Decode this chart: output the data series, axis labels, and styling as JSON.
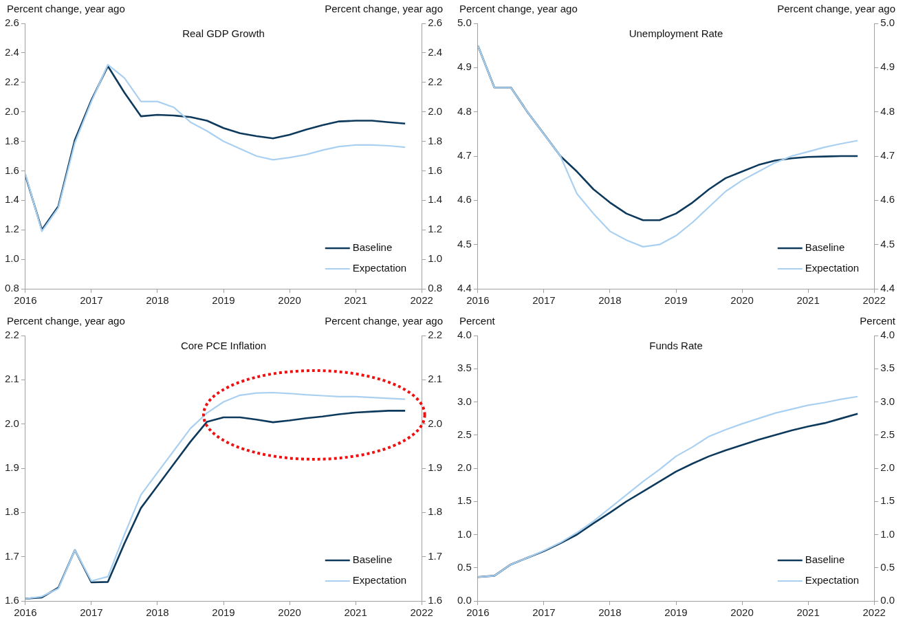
{
  "chart_data": [
    {
      "type": "line",
      "title": "Real GDP Growth",
      "ylabel": "Percent change, year ago",
      "y2label": "Percent change, year ago",
      "x": [
        2016,
        2016.25,
        2016.5,
        2016.75,
        2017,
        2017.25,
        2017.5,
        2017.75,
        2018,
        2018.25,
        2018.5,
        2018.75,
        2019,
        2019.25,
        2019.5,
        2019.75,
        2020,
        2020.25,
        2020.5,
        2020.75,
        2021,
        2021.25,
        2021.5,
        2021.75
      ],
      "series": [
        {
          "name": "Baseline",
          "color": "#0d3a5c",
          "values": [
            1.57,
            1.2,
            1.36,
            1.81,
            2.08,
            2.31,
            2.13,
            1.97,
            1.98,
            1.975,
            1.965,
            1.94,
            1.89,
            1.855,
            1.835,
            1.82,
            1.845,
            1.88,
            1.91,
            1.935,
            1.94,
            1.94,
            1.93,
            1.92
          ]
        },
        {
          "name": "Expectation",
          "color": "#a9d0f0",
          "values": [
            1.58,
            1.19,
            1.35,
            1.79,
            2.07,
            2.32,
            2.23,
            2.07,
            2.07,
            2.03,
            1.93,
            1.87,
            1.8,
            1.75,
            1.7,
            1.675,
            1.69,
            1.71,
            1.74,
            1.765,
            1.775,
            1.775,
            1.77,
            1.76
          ]
        }
      ],
      "xlim": [
        2016,
        2022
      ],
      "xticks": [
        2016,
        2017,
        2018,
        2019,
        2020,
        2021,
        2022
      ],
      "ylim": [
        0.8,
        2.6
      ],
      "yticks": [
        0.8,
        {
          "value": 1,
          "label": "1.0"
        },
        1.2,
        1.4,
        1.6,
        1.8,
        {
          "value": 2,
          "label": "2.0"
        },
        2.2,
        2.4,
        2.6
      ],
      "y2lim": [
        0.8,
        2.6
      ],
      "y2ticks": [
        0.8,
        {
          "value": 1,
          "label": "1.0"
        },
        1.2,
        1.4,
        1.6,
        1.8,
        {
          "value": 2,
          "label": "2.0"
        },
        2.2,
        2.4,
        2.6
      ],
      "legend": "bottom right"
    },
    {
      "type": "line",
      "title": "Unemployment Rate",
      "ylabel": "Percent change, year ago",
      "y2label": "Percent change, year ago",
      "x": [
        2016,
        2016.25,
        2016.5,
        2016.75,
        2017,
        2017.25,
        2017.5,
        2017.75,
        2018,
        2018.25,
        2018.5,
        2018.75,
        2019,
        2019.25,
        2019.5,
        2019.75,
        2020,
        2020.25,
        2020.5,
        2020.75,
        2021,
        2021.25,
        2021.5,
        2021.75
      ],
      "series": [
        {
          "name": "Baseline",
          "color": "#0d3a5c",
          "values": [
            4.95,
            4.855,
            4.855,
            4.8,
            4.75,
            4.7,
            4.665,
            4.625,
            4.595,
            4.57,
            4.555,
            4.555,
            4.57,
            4.595,
            4.625,
            4.65,
            4.665,
            4.68,
            4.69,
            4.695,
            4.698,
            4.699,
            4.7,
            4.7
          ]
        },
        {
          "name": "Expectation",
          "color": "#a9d0f0",
          "values": [
            4.95,
            4.855,
            4.855,
            4.8,
            4.75,
            4.7,
            4.615,
            4.57,
            4.53,
            4.51,
            4.495,
            4.5,
            4.52,
            4.55,
            4.585,
            4.62,
            4.645,
            4.665,
            4.685,
            4.7,
            4.71,
            4.72,
            4.728,
            4.735
          ]
        }
      ],
      "xlim": [
        2016,
        2022
      ],
      "xticks": [
        2016,
        2017,
        2018,
        2019,
        2020,
        2021,
        2022
      ],
      "ylim": [
        4.4,
        5
      ],
      "yticks": [
        4.4,
        4.5,
        4.6,
        4.7,
        4.8,
        4.9,
        {
          "value": 5,
          "label": "5.0"
        }
      ],
      "y2lim": [
        4.4,
        5
      ],
      "y2ticks": [
        4.4,
        4.5,
        4.6,
        4.7,
        4.8,
        4.9,
        {
          "value": 5,
          "label": "5.0"
        }
      ],
      "legend": "bottom right"
    },
    {
      "type": "line",
      "title": "Core PCE Inflation",
      "ylabel": "Percent change, year ago",
      "y2label": "Percent change, year ago",
      "x": [
        2016,
        2016.25,
        2016.5,
        2016.75,
        2017,
        2017.25,
        2017.5,
        2017.75,
        2018,
        2018.25,
        2018.5,
        2018.75,
        2019,
        2019.25,
        2019.5,
        2019.75,
        2020,
        2020.25,
        2020.5,
        2020.75,
        2021,
        2021.25,
        2021.5,
        2021.75
      ],
      "series": [
        {
          "name": "Baseline",
          "color": "#0d3a5c",
          "values": [
            1.605,
            1.608,
            1.63,
            1.715,
            1.642,
            1.643,
            1.73,
            1.81,
            1.86,
            1.91,
            1.96,
            2.005,
            2.015,
            2.015,
            2.01,
            2.004,
            2.008,
            2.013,
            2.017,
            2.022,
            2.026,
            2.028,
            2.03,
            2.03
          ]
        },
        {
          "name": "Expectation",
          "color": "#a9d0f0",
          "values": [
            1.605,
            1.61,
            1.628,
            1.715,
            1.645,
            1.655,
            1.75,
            1.84,
            1.89,
            1.94,
            1.99,
            2.025,
            2.05,
            2.065,
            2.07,
            2.071,
            2.069,
            2.066,
            2.064,
            2.062,
            2.062,
            2.06,
            2.058,
            2.056
          ]
        }
      ],
      "xlim": [
        2016,
        2022
      ],
      "xticks": [
        2016,
        2017,
        2018,
        2019,
        2020,
        2021,
        2022
      ],
      "ylim": [
        1.6,
        2.2
      ],
      "yticks": [
        1.6,
        1.7,
        1.8,
        1.9,
        {
          "value": 2,
          "label": "2.0"
        },
        2.1,
        2.2
      ],
      "y2lim": [
        1.6,
        2.2
      ],
      "y2ticks": [
        1.6,
        1.7,
        1.8,
        1.9,
        {
          "value": 2,
          "label": "2.0"
        },
        2.1,
        2.2
      ],
      "legend": "bottom right"
    },
    {
      "type": "line",
      "title": "Funds Rate",
      "ylabel": "Percent",
      "y2label": "Percent",
      "x": [
        2016,
        2016.25,
        2016.5,
        2016.75,
        2017,
        2017.25,
        2017.5,
        2017.75,
        2018,
        2018.25,
        2018.5,
        2018.75,
        2019,
        2019.25,
        2019.5,
        2019.75,
        2020,
        2020.25,
        2020.5,
        2020.75,
        2021,
        2021.25,
        2021.5,
        2021.75
      ],
      "series": [
        {
          "name": "Baseline",
          "color": "#0d3a5c",
          "values": [
            0.36,
            0.38,
            0.55,
            0.65,
            0.75,
            0.87,
            1.0,
            1.17,
            1.33,
            1.5,
            1.65,
            1.8,
            1.95,
            2.07,
            2.18,
            2.27,
            2.35,
            2.43,
            2.5,
            2.57,
            2.63,
            2.68,
            2.75,
            2.82
          ]
        },
        {
          "name": "Expectation",
          "color": "#a9d0f0",
          "values": [
            0.36,
            0.38,
            0.55,
            0.65,
            0.76,
            0.88,
            1.03,
            1.2,
            1.4,
            1.6,
            1.8,
            1.98,
            2.18,
            2.32,
            2.48,
            2.58,
            2.67,
            2.75,
            2.83,
            2.89,
            2.95,
            2.99,
            3.04,
            3.08
          ]
        }
      ],
      "xlim": [
        2016,
        2022
      ],
      "xticks": [
        2016,
        2017,
        2018,
        2019,
        2020,
        2021,
        2022
      ],
      "ylim": [
        0,
        4
      ],
      "yticks": [
        {
          "value": 0,
          "label": "0.0"
        },
        0.5,
        {
          "value": 1,
          "label": "1.0"
        },
        1.5,
        {
          "value": 2,
          "label": "2.0"
        },
        2.5,
        {
          "value": 3,
          "label": "3.0"
        },
        3.5,
        {
          "value": 4,
          "label": "4.0"
        }
      ],
      "y2lim": [
        0,
        4
      ],
      "y2ticks": [
        {
          "value": 0,
          "label": "0.0"
        },
        0.5,
        {
          "value": 1,
          "label": "1.0"
        },
        1.5,
        {
          "value": 2,
          "label": "2.0"
        },
        2.5,
        {
          "value": 3,
          "label": "3.0"
        },
        3.5,
        {
          "value": 4,
          "label": "4.0"
        }
      ],
      "legend": "bottom right"
    }
  ]
}
